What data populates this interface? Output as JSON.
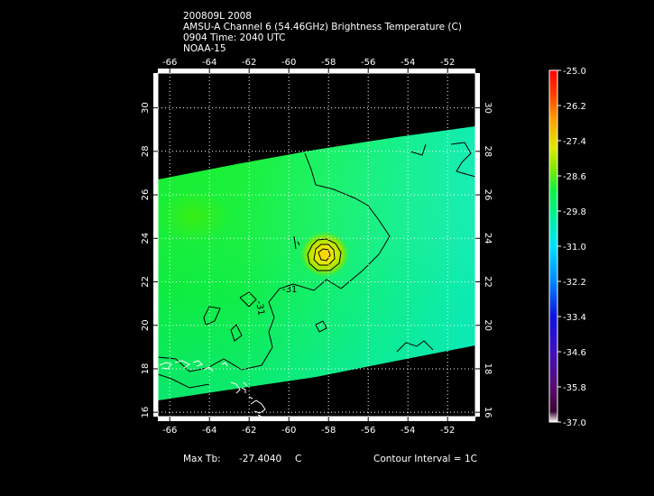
{
  "header": {
    "line1": "200809L 2008",
    "line2": "AMSU-A Channel 6 (54.46GHz) Brightness Temperature (C)",
    "line3": "0904 Time: 2040 UTC",
    "line4": "NOAA-15"
  },
  "footer": {
    "max_label": "Max Tb:",
    "max_value": "-27.4040",
    "max_unit": "C",
    "contour_interval": "Contour Interval = 1C"
  },
  "map": {
    "lon_range": [
      -66.6,
      -50.6
    ],
    "lat_range": [
      15.8,
      31.6
    ],
    "lon_ticks": [
      "-66",
      "-64",
      "-62",
      "-60",
      "-58",
      "-56",
      "-54",
      "-52"
    ],
    "lat_ticks": [
      "16",
      "18",
      "20",
      "22",
      "24",
      "26",
      "28",
      "30"
    ],
    "grid": "dotted white lat/lon lines",
    "contour_labels": [
      "-31",
      "-31"
    ],
    "storm_center": {
      "lon": -58.2,
      "lat": 23.6
    }
  },
  "colorbar": {
    "labels": [
      "-25.0",
      "-26.2",
      "-27.4",
      "-28.6",
      "-29.8",
      "-31.0",
      "-32.2",
      "-33.4",
      "-34.6",
      "-35.8",
      "-37.0"
    ],
    "range": [
      -37.0,
      -25.0
    ],
    "colors": [
      "#4a0a3a",
      "#6a00b0",
      "#1a1ad0",
      "#0080ff",
      "#00d4ff",
      "#00f0a0",
      "#1cf040",
      "#8ae000",
      "#ffe000",
      "#ff9000",
      "#ff0000"
    ]
  }
}
